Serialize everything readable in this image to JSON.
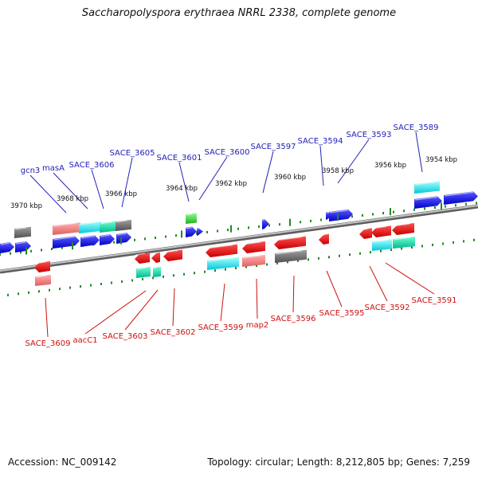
{
  "title": "Saccharopolyspora erythraea NRRL 2338, complete genome",
  "footer": {
    "accession_label": "Accession: NC_009142",
    "topology_label": "Topology: circular; Length: 8,212,805 bp; Genes: 7,259"
  },
  "colors": {
    "forward": "#1010e0",
    "reverse": "#e01010",
    "label_forward": "#2222bb",
    "label_reverse": "#cc1111",
    "tick": "#228822",
    "backbone": "#8a8a8a"
  },
  "scale": {
    "ticks": [
      {
        "label": "3970 kbp"
      },
      {
        "label": "3968 kbp"
      },
      {
        "label": "3966 kbp"
      },
      {
        "label": "3964 kbp"
      },
      {
        "label": "3962 kbp"
      },
      {
        "label": "3960 kbp"
      },
      {
        "label": "3958 kbp"
      },
      {
        "label": "3956 kbp"
      },
      {
        "label": "3954 kbp"
      }
    ]
  },
  "forward_genes": [
    {
      "name": "gcn3"
    },
    {
      "name": "masA"
    },
    {
      "name": "SACE_3606"
    },
    {
      "name": "SACE_3605"
    },
    {
      "name": "SACE_3601"
    },
    {
      "name": "SACE_3600"
    },
    {
      "name": "SACE_3597"
    },
    {
      "name": "SACE_3594"
    },
    {
      "name": "SACE_3593"
    },
    {
      "name": "SACE_3589"
    }
  ],
  "reverse_genes": [
    {
      "name": "SACE_3609"
    },
    {
      "name": "aacC1"
    },
    {
      "name": "SACE_3603"
    },
    {
      "name": "SACE_3602"
    },
    {
      "name": "SACE_3599"
    },
    {
      "name": "map2"
    },
    {
      "name": "SACE_3596"
    },
    {
      "name": "SACE_3595"
    },
    {
      "name": "SACE_3592"
    },
    {
      "name": "SACE_3591"
    }
  ]
}
